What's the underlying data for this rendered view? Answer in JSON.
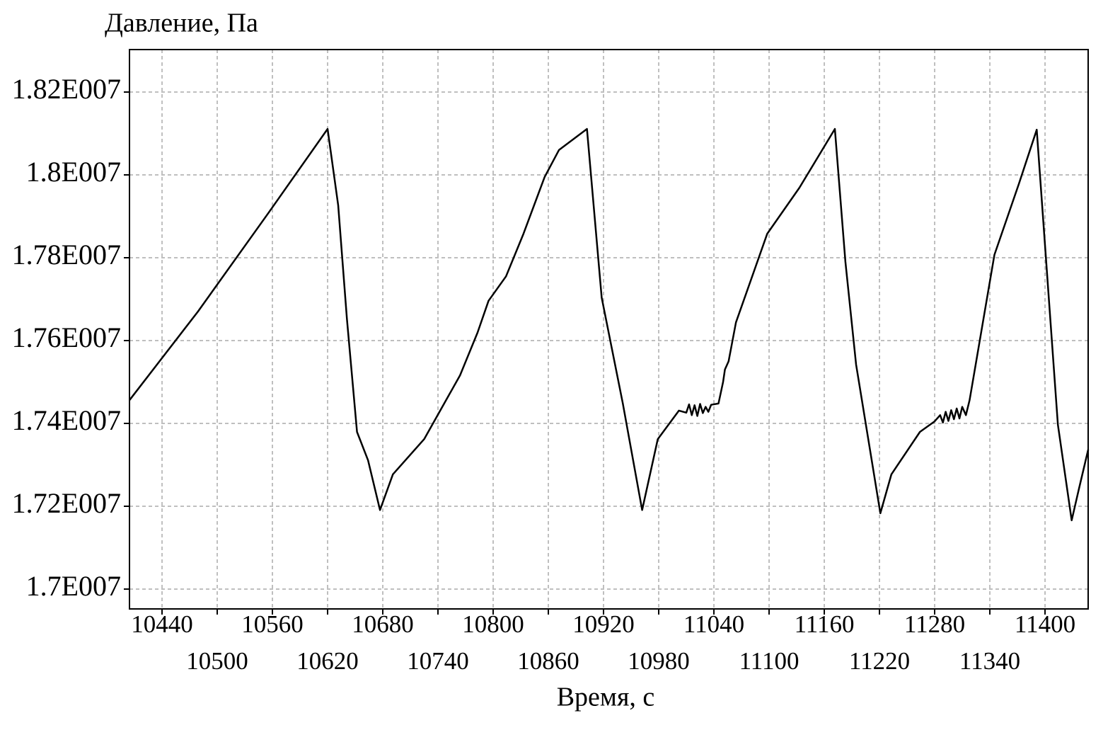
{
  "chart_data": {
    "type": "line",
    "y_label": "Давление, Па",
    "x_label": "Время, с",
    "xlim": [
      10404.6,
      11446.9
    ],
    "ylim": [
      16952100,
      18302600
    ],
    "xticks": [
      10440,
      10500,
      10560,
      10620,
      10680,
      10740,
      10800,
      10860,
      10920,
      10980,
      11040,
      11100,
      11160,
      11220,
      11280,
      11340,
      11400
    ],
    "yticks": [
      {
        "value": 17000000,
        "label": "1.7E007"
      },
      {
        "value": 17200000,
        "label": "1.72E007"
      },
      {
        "value": 17400000,
        "label": "1.74E007"
      },
      {
        "value": 17600000,
        "label": "1.76E007"
      },
      {
        "value": 17800000,
        "label": "1.78E007"
      },
      {
        "value": 18000000,
        "label": "1.8E007"
      },
      {
        "value": 18200000,
        "label": "1.82E007"
      }
    ],
    "grid": true,
    "color": "#000000",
    "x": [
      10404.6,
      10479,
      10556,
      10620,
      10631.5,
      10641,
      10652,
      10664,
      10677,
      10691,
      10725,
      10764,
      10783,
      10795,
      10814,
      10833,
      10856,
      10871.5,
      10902,
      10918,
      10941,
      10962,
      10979,
      11002,
      11010,
      11013,
      11016,
      11019,
      11022,
      11025,
      11028,
      11031,
      11034,
      11037,
      11045,
      11050,
      11052,
      11056,
      11064,
      11098,
      11133,
      11171.5,
      11183,
      11194.6,
      11221,
      11233,
      11264,
      11280,
      11286,
      11289,
      11292,
      11295,
      11298,
      11301,
      11304,
      11307,
      11310,
      11314,
      11318,
      11345,
      11371.5,
      11391,
      11414,
      11429,
      11437,
      11447
    ],
    "values": [
      17456000,
      17670000,
      17909000,
      18111000,
      17926500,
      17653000,
      17379500,
      17311000,
      17191000,
      17277000,
      17362000,
      17516000,
      17619000,
      17696000,
      17755000,
      17858000,
      17995000,
      18060000,
      18111000,
      17704000,
      17448000,
      17191000,
      17362000,
      17431000,
      17426000,
      17446000,
      17420000,
      17444000,
      17418000,
      17447000,
      17425000,
      17440000,
      17428000,
      17445000,
      17448000,
      17500000,
      17530000,
      17550000,
      17644000,
      17858000,
      17969000,
      18111000,
      17790000,
      17542000,
      17183000,
      17277000,
      17379500,
      17405000,
      17420000,
      17402000,
      17428000,
      17406000,
      17432000,
      17410000,
      17436000,
      17412000,
      17440000,
      17420000,
      17456000,
      17807000,
      17978000,
      18109000,
      17397000,
      17166000,
      17243000,
      17337000
    ]
  }
}
